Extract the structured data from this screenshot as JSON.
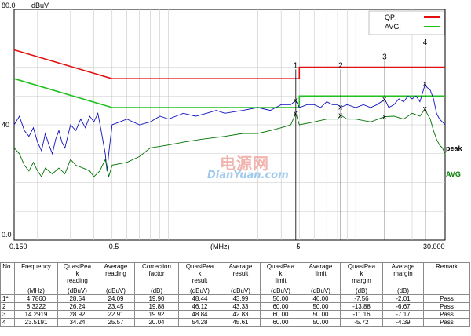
{
  "chart_data": {
    "type": "line",
    "x_scale": "log",
    "xlim": [
      0.15,
      30.0
    ],
    "ylim": [
      0.0,
      80.0
    ],
    "y_unit_label": "dBuV",
    "x_unit_label": "(MHz)",
    "y_ticks": [
      "80.0",
      "40",
      "0.0"
    ],
    "y_tick_values": [
      80,
      40,
      0
    ],
    "x_ticks": [
      "0.150",
      "0.5",
      "5",
      "30.000"
    ],
    "x_tick_values": [
      0.15,
      0.5,
      5,
      30
    ],
    "grid": true,
    "legend_position": "top-right",
    "legend": [
      {
        "name": "QP:",
        "color": "#e01010"
      },
      {
        "name": "AVG:",
        "color": "#20c020"
      }
    ],
    "side_labels": [
      {
        "text": "peak",
        "color": "#000000"
      },
      {
        "text": "AVG",
        "color": "#008000"
      }
    ],
    "limit_lines": [
      {
        "name": "QP",
        "color": "#e01010",
        "x": [
          0.15,
          0.5,
          5,
          5,
          30
        ],
        "y": [
          66,
          56,
          56,
          60,
          60
        ]
      },
      {
        "name": "AVG",
        "color": "#20c020",
        "x": [
          0.15,
          0.5,
          5,
          5,
          30
        ],
        "y": [
          56,
          46,
          46,
          50,
          50
        ]
      }
    ],
    "series": [
      {
        "trace": "peak",
        "color": "#1010c0",
        "x": [
          0.15,
          0.16,
          0.17,
          0.18,
          0.19,
          0.2,
          0.21,
          0.22,
          0.23,
          0.24,
          0.25,
          0.26,
          0.27,
          0.28,
          0.29,
          0.3,
          0.32,
          0.34,
          0.36,
          0.38,
          0.4,
          0.42,
          0.44,
          0.46,
          0.47,
          0.48,
          0.5,
          0.55,
          0.6,
          0.7,
          0.8,
          0.9,
          1.0,
          1.2,
          1.4,
          1.6,
          1.8,
          2.0,
          2.5,
          3.0,
          3.5,
          4.0,
          4.5,
          4.786,
          5.0,
          5.5,
          6.0,
          6.5,
          7.0,
          7.5,
          8.0,
          8.322,
          9.0,
          10.0,
          11.0,
          12.0,
          13.0,
          14.29,
          15.0,
          16.0,
          17.0,
          18.0,
          19.0,
          20.0,
          21.0,
          22.0,
          23.519,
          24.0,
          25.0,
          26.0,
          27.0,
          28.0,
          29.0,
          30.0
        ],
        "y": [
          40,
          43,
          38,
          36,
          39,
          34,
          31,
          37,
          33,
          30,
          35,
          38,
          34,
          32,
          36,
          40,
          38,
          42,
          39,
          43,
          41,
          44,
          37,
          30,
          24,
          30,
          40,
          41,
          42,
          40,
          41,
          43,
          42,
          44,
          43,
          44,
          45,
          44,
          45,
          46,
          45,
          47,
          47,
          48.44,
          46,
          47,
          47,
          46,
          48,
          47,
          47,
          46.12,
          47,
          46,
          47,
          46,
          47,
          48.84,
          46,
          47,
          49,
          48,
          50,
          49,
          50,
          48,
          54.28,
          53,
          52,
          49,
          44,
          42,
          41,
          40
        ]
      },
      {
        "trace": "AVG",
        "color": "#007000",
        "x": [
          0.15,
          0.16,
          0.17,
          0.18,
          0.19,
          0.2,
          0.21,
          0.22,
          0.24,
          0.26,
          0.28,
          0.3,
          0.32,
          0.35,
          0.38,
          0.4,
          0.43,
          0.46,
          0.48,
          0.5,
          0.6,
          0.7,
          0.8,
          1.0,
          1.2,
          1.5,
          2.0,
          2.5,
          3.0,
          3.5,
          4.0,
          4.5,
          4.786,
          5.0,
          6.0,
          7.0,
          8.0,
          8.322,
          9.0,
          10.0,
          12.0,
          14.29,
          16.0,
          18.0,
          20.0,
          22.0,
          23.519,
          24.0,
          25.0,
          26.0,
          27.0,
          28.0,
          29.0,
          30.0
        ],
        "y": [
          32,
          30,
          26,
          24,
          27,
          24,
          22,
          25,
          23,
          25,
          23,
          28,
          26,
          25,
          24,
          22,
          24,
          28,
          22,
          26,
          27,
          29,
          32,
          33,
          34,
          35,
          36,
          37,
          37,
          38,
          39,
          40,
          43.99,
          40,
          41,
          42,
          42,
          43.33,
          42,
          42,
          41,
          42.83,
          43,
          42,
          44,
          43,
          45.61,
          44,
          42,
          38,
          35,
          33,
          32,
          30
        ]
      }
    ],
    "markers": [
      {
        "label": "1",
        "x": 4.786,
        "qp": 48.44,
        "avg": 43.99,
        "top": 57
      },
      {
        "label": "2",
        "x": 8.3222,
        "qp": 46.12,
        "avg": 43.33,
        "top": 57
      },
      {
        "label": "3",
        "x": 14.2919,
        "qp": 48.84,
        "avg": 42.83,
        "top": 60
      },
      {
        "label": "4",
        "x": 23.5191,
        "qp": 54.28,
        "avg": 45.61,
        "top": 65
      }
    ]
  },
  "watermark": {
    "cn": "电源网",
    "en": "DianYuan.com"
  },
  "table": {
    "headers": [
      "No.",
      "Frequency",
      "QuasiPeak reading",
      "Average reading",
      "Correction factor",
      "QuasiPeak result",
      "Average result",
      "QuasiPeak limit",
      "Average limit",
      "QuasiPeak margin",
      "Average margin",
      "Remark"
    ],
    "header_lines": [
      [
        "No."
      ],
      [
        "Frequency"
      ],
      [
        "QuasiPea",
        "k",
        "reading"
      ],
      [
        "Average",
        "reading"
      ],
      [
        "Correction",
        "factor"
      ],
      [
        "QuasiPea",
        "k",
        "result"
      ],
      [
        "Average",
        "result"
      ],
      [
        "QuasiPea",
        "k",
        "limit"
      ],
      [
        "Average",
        "limit"
      ],
      [
        "QuasiPea",
        "k",
        "margin"
      ],
      [
        "Average",
        "margin"
      ],
      [
        "Remark"
      ]
    ],
    "units": [
      "",
      "(MHz)",
      "(dBuV)",
      "(dBuV)",
      "(dB)",
      "(dBuV)",
      "(dBuV)",
      "(dBuV)",
      "(dBuV)",
      "(dB)",
      "(dB)",
      ""
    ],
    "rows": [
      [
        "1*",
        "4.7860",
        "28.54",
        "24.09",
        "19.90",
        "48.44",
        "43.99",
        "56.00",
        "46.00",
        "-7.56",
        "-2.01",
        "Pass"
      ],
      [
        "2",
        "8.3222",
        "26.24",
        "23.45",
        "19.88",
        "46.12",
        "43.33",
        "60.00",
        "50.00",
        "-13.88",
        "-6.67",
        "Pass"
      ],
      [
        "3",
        "14.2919",
        "28.92",
        "22.91",
        "19.92",
        "48.84",
        "42.83",
        "60.00",
        "50.00",
        "-11.16",
        "-7.17",
        "Pass"
      ],
      [
        "4",
        "23.5191",
        "34.24",
        "25.57",
        "20.04",
        "54.28",
        "45.61",
        "60.00",
        "50.00",
        "-5.72",
        "-4.39",
        "Pass"
      ]
    ]
  }
}
